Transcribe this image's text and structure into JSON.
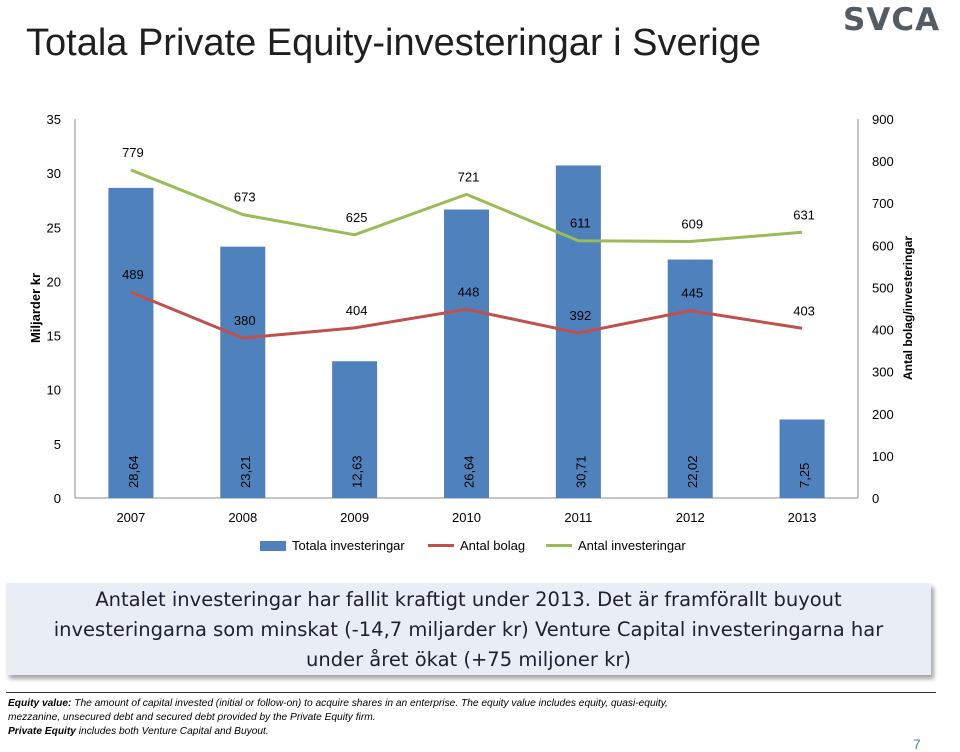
{
  "title": "Totala Private Equity-investeringar i Sverige",
  "logo_text": "SVCA",
  "chart_data": {
    "type": "bar",
    "categories": [
      "2007",
      "2008",
      "2009",
      "2010",
      "2011",
      "2012",
      "2013"
    ],
    "bar_series": {
      "name": "Totala investeringar",
      "values": [
        28.64,
        23.21,
        12.63,
        26.64,
        30.71,
        22.02,
        7.25
      ],
      "labels": [
        "28,64",
        "23,21",
        "12,63",
        "26,64",
        "30,71",
        "22,02",
        "7,25"
      ],
      "color": "#4f81bd"
    },
    "line_series": [
      {
        "name": "Antal bolag",
        "values": [
          489,
          380,
          404,
          448,
          392,
          445,
          403
        ],
        "color": "#c0504d"
      },
      {
        "name": "Antal investeringar",
        "values": [
          779,
          673,
          625,
          721,
          611,
          609,
          631
        ],
        "color": "#9bbb59"
      }
    ],
    "ylabel_left": "Miljarder kr",
    "ylabel_right": "Antal bolag/investeringar",
    "ylim_left": [
      0,
      35
    ],
    "ylim_right": [
      0,
      900
    ],
    "yticks_left": [
      0,
      5,
      10,
      15,
      20,
      25,
      30,
      35
    ],
    "yticks_right": [
      0,
      100,
      200,
      300,
      400,
      500,
      600,
      700,
      800,
      900
    ],
    "legend_position": "bottom",
    "grid": false
  },
  "callout": {
    "line1": "Antalet investeringar har fallit kraftigt under 2013. Det är framförallt buyout",
    "line2": "investeringarna som minskat (-14,7 miljarder kr) Venture Capital investeringarna har",
    "line3": "under året ökat (+75 miljoner kr)"
  },
  "footnote": {
    "term1": "Equity value:",
    "text1a": " The amount of capital invested (initial or follow-on)  to acquire shares in an enterprise.  The equity value includes equity, quasi-equity,",
    "text1b": "mezzanine, unsecured debt and secured debt provided by the Private Equity  firm.",
    "term2": "Private Equity",
    "text2": " includes both Venture Capital and Buyout."
  },
  "page_number": "7"
}
